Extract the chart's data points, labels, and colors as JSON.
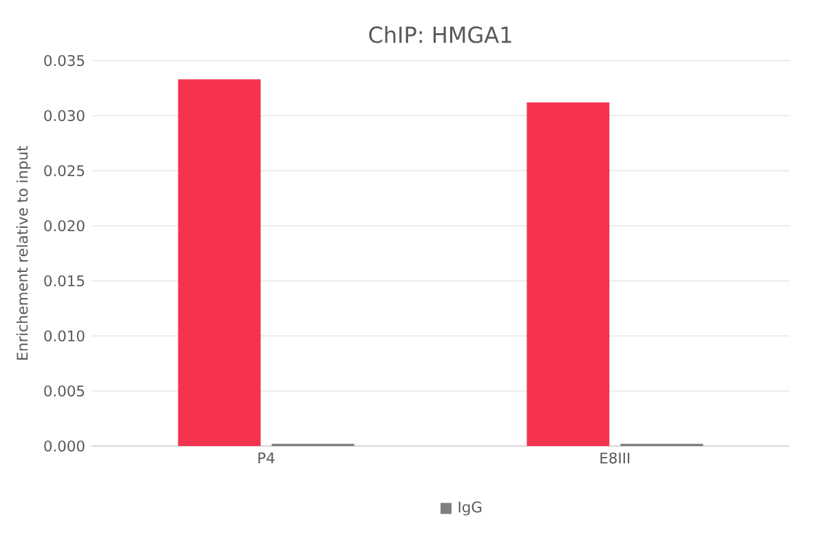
{
  "chart_data": {
    "type": "bar",
    "title": "ChIP: HMGA1",
    "ylabel": "Enrichement relative to input",
    "categories": [
      "P4",
      "E8III"
    ],
    "series": [
      {
        "color": "#f5334f",
        "values": [
          0.0333,
          0.0312
        ]
      },
      {
        "name": "IgG",
        "color": "#7f7f7f",
        "values": [
          0.0002,
          0.0002
        ]
      }
    ],
    "ylim": [
      0,
      0.035
    ],
    "yticks": [
      {
        "value": 0,
        "label": "0.000"
      },
      {
        "value": 0.005,
        "label": "0.005"
      },
      {
        "value": 0.01,
        "label": "0.010"
      },
      {
        "value": 0.015,
        "label": "0.015"
      },
      {
        "value": 0.02,
        "label": "0.020"
      },
      {
        "value": 0.025,
        "label": "0.025"
      },
      {
        "value": 0.03,
        "label": "0.030"
      },
      {
        "value": 0.035,
        "label": "0.035"
      }
    ],
    "grid": "y",
    "legend": "bottom"
  }
}
